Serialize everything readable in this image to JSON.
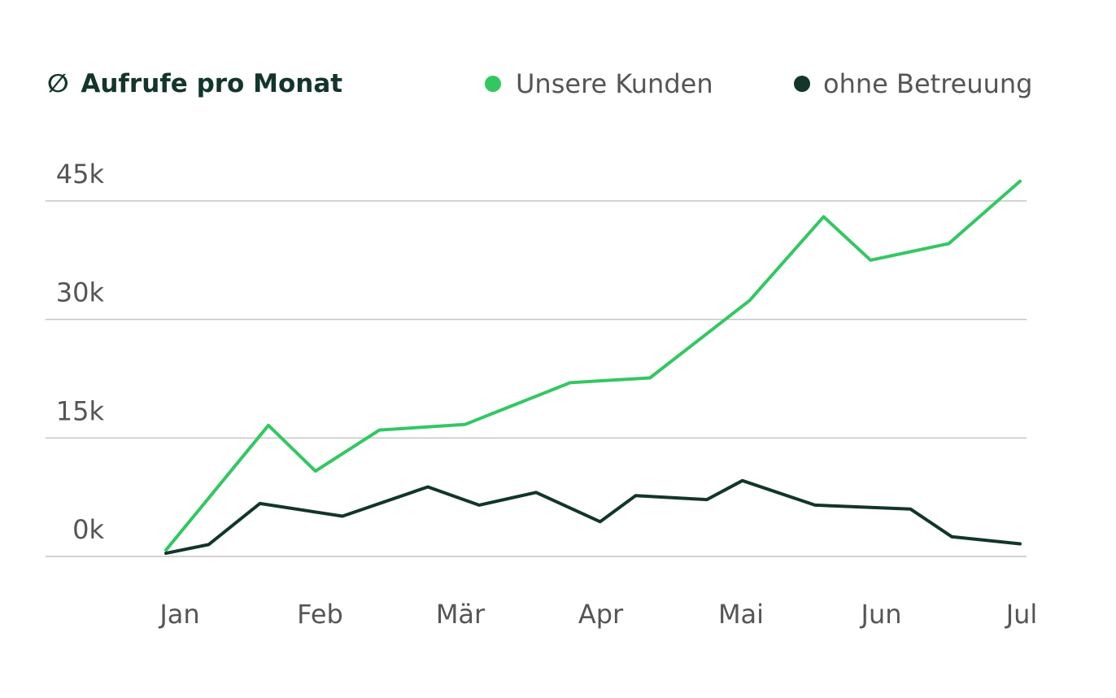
{
  "chart_data": {
    "type": "line",
    "title": "Aufrufe pro Monat",
    "title_symbol": "∅",
    "xlabel": "",
    "ylabel": "",
    "categories": [
      "Jan",
      "Feb",
      "Mär",
      "Apr",
      "Mai",
      "Jun",
      "Jul"
    ],
    "xlim": [
      0,
      6
    ],
    "ylim": [
      0,
      45000
    ],
    "y_ticks": [
      0,
      15000,
      30000,
      45000
    ],
    "y_tick_labels": [
      "0k",
      "15k",
      "30k",
      "45k"
    ],
    "grid": true,
    "legend_position": "top-right",
    "series": [
      {
        "name": "Unsere Kunden",
        "color": "#33c762",
        "x": [
          0,
          0.72,
          1.05,
          1.5,
          2.1,
          2.84,
          3.4,
          4.1,
          4.62,
          4.95,
          5.5,
          6.0
        ],
        "y": [
          800,
          16600,
          10800,
          16000,
          16700,
          22000,
          22600,
          32400,
          43000,
          37500,
          39600,
          47500
        ]
      },
      {
        "name": "ohne Betreuung",
        "color": "#12352c",
        "x": [
          0,
          0.3,
          0.66,
          1.24,
          1.84,
          2.2,
          2.6,
          3.05,
          3.3,
          3.8,
          4.05,
          4.56,
          5.23,
          5.52,
          6.0
        ],
        "y": [
          400,
          1500,
          6700,
          5100,
          8800,
          6500,
          8100,
          4400,
          7700,
          7200,
          9600,
          6500,
          6000,
          2500,
          1600
        ]
      }
    ]
  }
}
